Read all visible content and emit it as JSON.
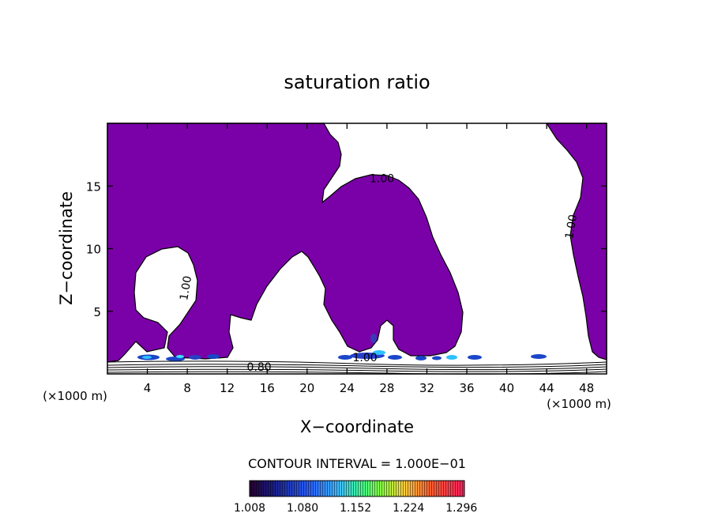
{
  "chart_data": {
    "type": "filled-contour",
    "title": "saturation ratio",
    "xlabel": "X−coordinate",
    "ylabel": "Z−coordinate",
    "x_unit_left": "(×1000 m)",
    "x_unit_right": "(×1000 m)",
    "xlim": [
      0,
      50
    ],
    "ylim": [
      0,
      20
    ],
    "x_ticks": [
      4,
      8,
      12,
      16,
      20,
      24,
      28,
      32,
      36,
      40,
      44,
      48
    ],
    "y_ticks": [
      5,
      10,
      15
    ],
    "contour_interval_text": "CONTOUR INTERVAL = 1.000E−01",
    "contour_labels": [
      {
        "text": "1.00",
        "x": 27.5,
        "y": 15.3,
        "rot": 0
      },
      {
        "text": "1.00",
        "x": 46.8,
        "y": 11.7,
        "rot": -80
      },
      {
        "text": "1.00",
        "x": 8.2,
        "y": 6.8,
        "rot": -80
      },
      {
        "text": "1.00",
        "x": 25.8,
        "y": 1.0,
        "rot": 0
      },
      {
        "text": "0.80",
        "x": 15.2,
        "y": 0.25,
        "rot": 0
      }
    ],
    "colorbar": {
      "min": 1.008,
      "max": 1.3,
      "tick_labels": [
        "1.008",
        "1.080",
        "1.152",
        "1.224",
        "1.296"
      ]
    },
    "colors": {
      "fill": "#7a00a8",
      "background": "#ffffff",
      "contour": "#000000"
    }
  }
}
